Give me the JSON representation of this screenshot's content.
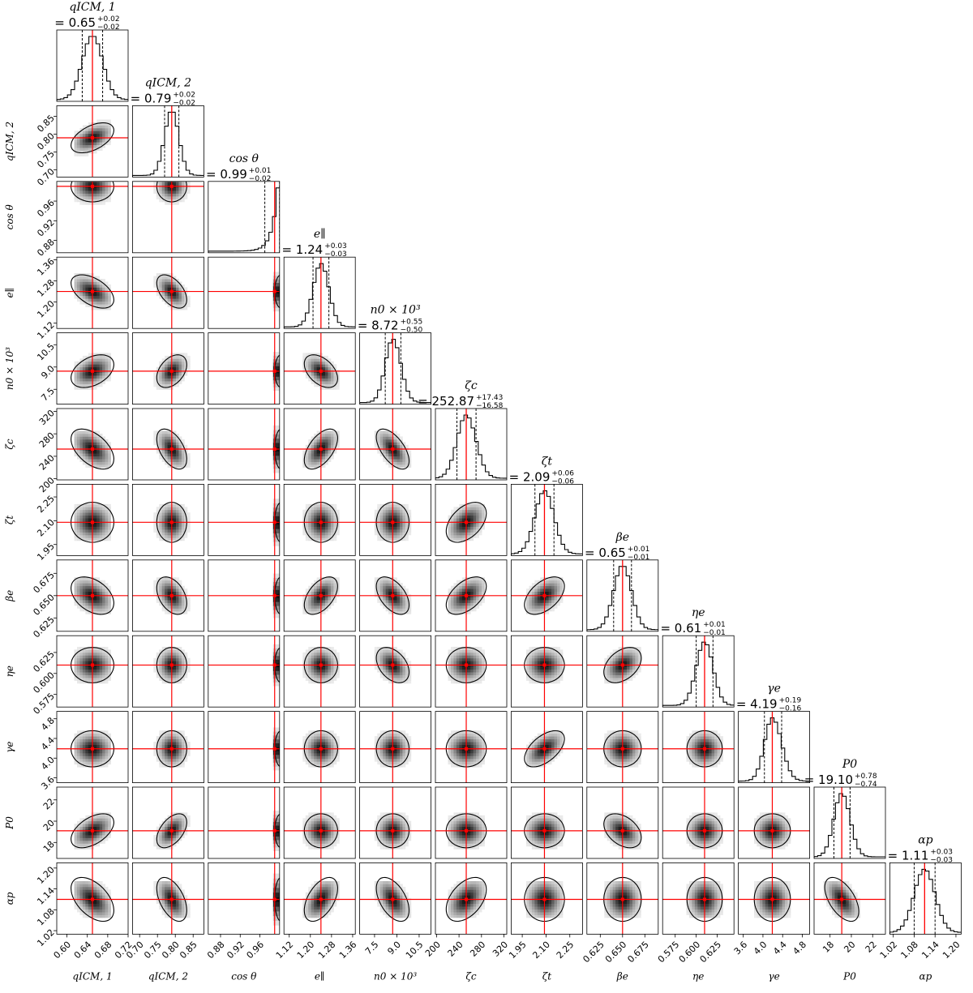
{
  "chart_data": {
    "type": "corner",
    "marker_color": "#ff0000",
    "parameters": [
      {
        "label": "q_ICM,1",
        "axis_label": "qICM, 1",
        "title_name": "qICM, 1",
        "median": 0.65,
        "plus": "+0.02",
        "minus": "−0.02",
        "median_text": "= 0.65",
        "truth": 0.65,
        "q16": 0.63,
        "q84": 0.67,
        "lim": [
          0.58,
          0.72
        ],
        "ticks": [
          0.6,
          0.64,
          0.68,
          0.72
        ],
        "tick_labels": [
          "0.60",
          "0.64",
          "0.68",
          "0.72"
        ]
      },
      {
        "label": "q_ICM,2",
        "axis_label": "qICM, 2",
        "title_name": "qICM, 2",
        "median": 0.79,
        "plus": "+0.02",
        "minus": "−0.02",
        "median_text": "= 0.79",
        "truth": 0.79,
        "q16": 0.77,
        "q84": 0.81,
        "lim": [
          0.68,
          0.88
        ],
        "ticks": [
          0.7,
          0.75,
          0.8,
          0.85
        ],
        "tick_labels": [
          "0.70",
          "0.75",
          "0.80",
          "0.85"
        ]
      },
      {
        "label": "cos θ",
        "axis_label": "cos θ",
        "title_name": "cos θ",
        "median": 0.99,
        "plus": "+0.01",
        "minus": "−0.02",
        "median_text": "= 0.99",
        "truth": 0.99,
        "q16": 0.97,
        "q84": 1.0,
        "lim": [
          0.855,
          1.0
        ],
        "ticks": [
          0.88,
          0.92,
          0.96
        ],
        "tick_labels": [
          "0.88",
          "0.92",
          "0.96"
        ]
      },
      {
        "label": "e_∥",
        "axis_label": "e∥",
        "title_name": "e∥",
        "median": 1.24,
        "plus": "+0.03",
        "minus": "−0.03",
        "median_text": "= 1.24",
        "truth": 1.24,
        "q16": 1.21,
        "q84": 1.27,
        "lim": [
          1.1,
          1.37
        ],
        "ticks": [
          1.12,
          1.2,
          1.28,
          1.36
        ],
        "tick_labels": [
          "1.12",
          "1.20",
          "1.28",
          "1.36"
        ]
      },
      {
        "label": "n_0 × 10^3",
        "axis_label": "n0 × 10³",
        "title_name": "n0 × 10³",
        "median": 8.72,
        "plus": "+0.55",
        "minus": "−0.50",
        "median_text": "= 8.72",
        "truth": 8.72,
        "q16": 8.22,
        "q84": 9.27,
        "lim": [
          6.5,
          11.3
        ],
        "ticks": [
          7.5,
          9.0,
          10.5
        ],
        "tick_labels": [
          "7.5",
          "9.0",
          "10.5"
        ]
      },
      {
        "label": "ζ_c",
        "axis_label": "ζc",
        "title_name": "ζc",
        "median": 252.87,
        "plus": "+17.43",
        "minus": "−16.58",
        "median_text": "= 252.87",
        "truth": 252.87,
        "q16": 236.29,
        "q84": 270.3,
        "lim": [
          198,
          325
        ],
        "ticks": [
          200,
          240,
          280,
          320
        ],
        "tick_labels": [
          "200",
          "240",
          "280",
          "320"
        ]
      },
      {
        "label": "ζ_t",
        "axis_label": "ζt",
        "title_name": "ζt",
        "median": 2.09,
        "plus": "+0.06",
        "minus": "−0.06",
        "median_text": "= 2.09",
        "truth": 2.09,
        "q16": 2.03,
        "q84": 2.15,
        "lim": [
          1.88,
          2.33
        ],
        "ticks": [
          1.95,
          2.1,
          2.25
        ],
        "tick_labels": [
          "1.95",
          "2.10",
          "2.25"
        ]
      },
      {
        "label": "β_e",
        "axis_label": "βe",
        "title_name": "βe",
        "median": 0.65,
        "plus": "+0.01",
        "minus": "−0.01",
        "median_text": "= 0.65",
        "truth": 0.65,
        "q16": 0.64,
        "q84": 0.66,
        "lim": [
          0.61,
          0.69
        ],
        "ticks": [
          0.625,
          0.65,
          0.675
        ],
        "tick_labels": [
          "0.625",
          "0.650",
          "0.675"
        ]
      },
      {
        "label": "η_e",
        "axis_label": "ηe",
        "title_name": "ηe",
        "median": 0.61,
        "plus": "+0.01",
        "minus": "−0.01",
        "median_text": "= 0.61",
        "truth": 0.61,
        "q16": 0.6,
        "q84": 0.62,
        "lim": [
          0.56,
          0.645
        ],
        "ticks": [
          0.575,
          0.6,
          0.625
        ],
        "tick_labels": [
          "0.575",
          "0.600",
          "0.625"
        ]
      },
      {
        "label": "γ_e",
        "axis_label": "γe",
        "title_name": "γe",
        "median": 4.19,
        "plus": "+0.19",
        "minus": "−0.16",
        "median_text": "= 4.19",
        "truth": 4.19,
        "q16": 4.03,
        "q84": 4.38,
        "lim": [
          3.5,
          4.95
        ],
        "ticks": [
          3.6,
          4.0,
          4.4,
          4.8
        ],
        "tick_labels": [
          "3.6",
          "4.0",
          "4.4",
          "4.8"
        ]
      },
      {
        "label": "P_0",
        "axis_label": "P0",
        "title_name": "P0",
        "median": 19.1,
        "plus": "+0.78",
        "minus": "−0.74",
        "median_text": "= 19.10",
        "truth": 19.1,
        "q16": 18.36,
        "q84": 19.88,
        "lim": [
          16.5,
          23.2
        ],
        "ticks": [
          18,
          20,
          22
        ],
        "tick_labels": [
          "18",
          "20",
          "22"
        ]
      },
      {
        "label": "α_p",
        "axis_label": "αp",
        "title_name": "αp",
        "median": 1.11,
        "plus": "+0.03",
        "minus": "−0.03",
        "median_text": "= 1.11",
        "truth": 1.11,
        "q16": 1.08,
        "q84": 1.14,
        "lim": [
          1.01,
          1.215
        ],
        "ticks": [
          1.02,
          1.08,
          1.14,
          1.2
        ],
        "tick_labels": [
          "1.02",
          "1.08",
          "1.14",
          "1.20"
        ]
      }
    ],
    "correlations": [
      [
        0,
        1,
        0.5
      ],
      [
        0,
        3,
        -0.5
      ],
      [
        0,
        4,
        0.4
      ],
      [
        0,
        5,
        -0.5
      ],
      [
        0,
        7,
        -0.4
      ],
      [
        0,
        10,
        0.5
      ],
      [
        0,
        11,
        -0.5
      ],
      [
        1,
        3,
        -0.5
      ],
      [
        1,
        4,
        0.4
      ],
      [
        1,
        5,
        -0.5
      ],
      [
        1,
        7,
        -0.4
      ],
      [
        1,
        10,
        0.5
      ],
      [
        1,
        11,
        -0.5
      ],
      [
        3,
        4,
        -0.45
      ],
      [
        3,
        5,
        0.55
      ],
      [
        3,
        7,
        0.5
      ],
      [
        3,
        11,
        0.5
      ],
      [
        4,
        5,
        -0.6
      ],
      [
        4,
        7,
        -0.5
      ],
      [
        4,
        8,
        -0.4
      ],
      [
        4,
        11,
        -0.5
      ],
      [
        5,
        6,
        0.45
      ],
      [
        5,
        7,
        0.5
      ],
      [
        5,
        11,
        0.45
      ],
      [
        6,
        7,
        0.5
      ],
      [
        6,
        9,
        0.55
      ],
      [
        7,
        8,
        0.4
      ],
      [
        7,
        10,
        -0.4
      ],
      [
        10,
        11,
        -0.55
      ]
    ]
  }
}
